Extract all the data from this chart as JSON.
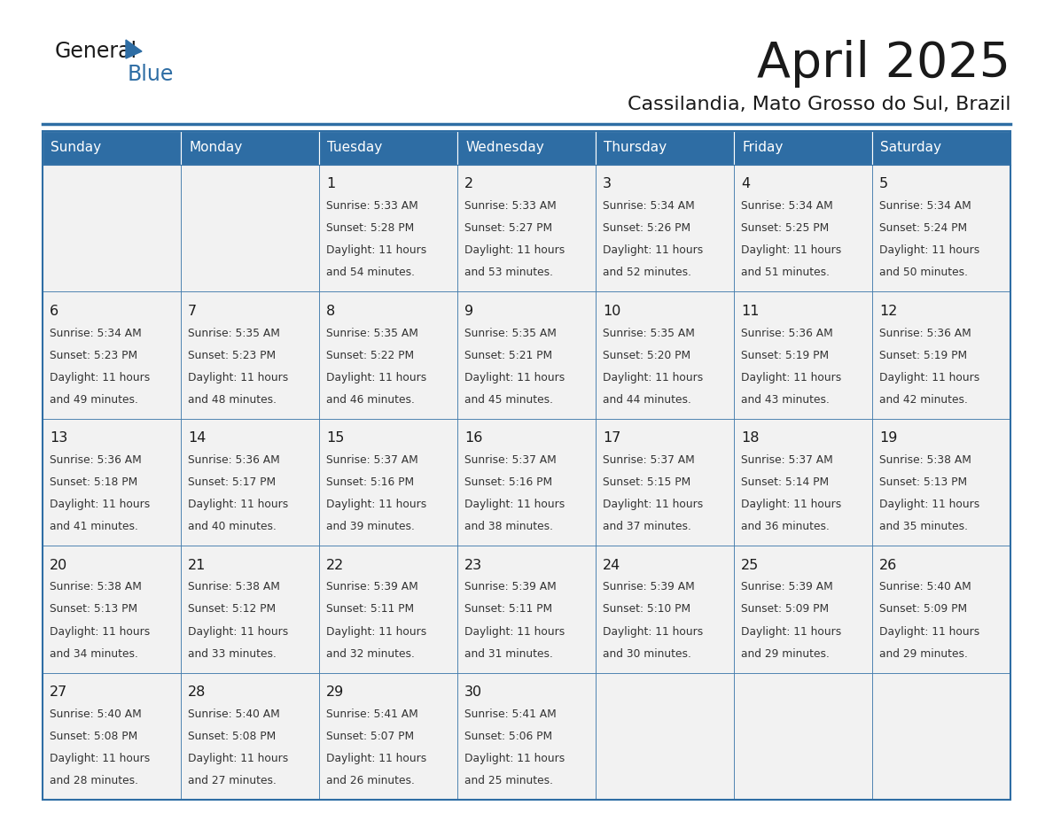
{
  "title": "April 2025",
  "subtitle": "Cassilandia, Mato Grosso do Sul, Brazil",
  "header_bg_color": "#2E6DA4",
  "header_text_color": "#FFFFFF",
  "cell_bg_color_odd": "#F0F0F0",
  "cell_bg_color_even": "#F8F8F8",
  "day_number_color": "#1A1A1A",
  "cell_text_color": "#333333",
  "border_color": "#2E6DA4",
  "days_of_week": [
    "Sunday",
    "Monday",
    "Tuesday",
    "Wednesday",
    "Thursday",
    "Friday",
    "Saturday"
  ],
  "calendar_data": [
    [
      {
        "day": "",
        "sunrise": "",
        "sunset": "",
        "daylight": ""
      },
      {
        "day": "",
        "sunrise": "",
        "sunset": "",
        "daylight": ""
      },
      {
        "day": "1",
        "sunrise": "5:33 AM",
        "sunset": "5:28 PM",
        "daylight": "11 hours and 54 minutes."
      },
      {
        "day": "2",
        "sunrise": "5:33 AM",
        "sunset": "5:27 PM",
        "daylight": "11 hours and 53 minutes."
      },
      {
        "day": "3",
        "sunrise": "5:34 AM",
        "sunset": "5:26 PM",
        "daylight": "11 hours and 52 minutes."
      },
      {
        "day": "4",
        "sunrise": "5:34 AM",
        "sunset": "5:25 PM",
        "daylight": "11 hours and 51 minutes."
      },
      {
        "day": "5",
        "sunrise": "5:34 AM",
        "sunset": "5:24 PM",
        "daylight": "11 hours and 50 minutes."
      }
    ],
    [
      {
        "day": "6",
        "sunrise": "5:34 AM",
        "sunset": "5:23 PM",
        "daylight": "11 hours and 49 minutes."
      },
      {
        "day": "7",
        "sunrise": "5:35 AM",
        "sunset": "5:23 PM",
        "daylight": "11 hours and 48 minutes."
      },
      {
        "day": "8",
        "sunrise": "5:35 AM",
        "sunset": "5:22 PM",
        "daylight": "11 hours and 46 minutes."
      },
      {
        "day": "9",
        "sunrise": "5:35 AM",
        "sunset": "5:21 PM",
        "daylight": "11 hours and 45 minutes."
      },
      {
        "day": "10",
        "sunrise": "5:35 AM",
        "sunset": "5:20 PM",
        "daylight": "11 hours and 44 minutes."
      },
      {
        "day": "11",
        "sunrise": "5:36 AM",
        "sunset": "5:19 PM",
        "daylight": "11 hours and 43 minutes."
      },
      {
        "day": "12",
        "sunrise": "5:36 AM",
        "sunset": "5:19 PM",
        "daylight": "11 hours and 42 minutes."
      }
    ],
    [
      {
        "day": "13",
        "sunrise": "5:36 AM",
        "sunset": "5:18 PM",
        "daylight": "11 hours and 41 minutes."
      },
      {
        "day": "14",
        "sunrise": "5:36 AM",
        "sunset": "5:17 PM",
        "daylight": "11 hours and 40 minutes."
      },
      {
        "day": "15",
        "sunrise": "5:37 AM",
        "sunset": "5:16 PM",
        "daylight": "11 hours and 39 minutes."
      },
      {
        "day": "16",
        "sunrise": "5:37 AM",
        "sunset": "5:16 PM",
        "daylight": "11 hours and 38 minutes."
      },
      {
        "day": "17",
        "sunrise": "5:37 AM",
        "sunset": "5:15 PM",
        "daylight": "11 hours and 37 minutes."
      },
      {
        "day": "18",
        "sunrise": "5:37 AM",
        "sunset": "5:14 PM",
        "daylight": "11 hours and 36 minutes."
      },
      {
        "day": "19",
        "sunrise": "5:38 AM",
        "sunset": "5:13 PM",
        "daylight": "11 hours and 35 minutes."
      }
    ],
    [
      {
        "day": "20",
        "sunrise": "5:38 AM",
        "sunset": "5:13 PM",
        "daylight": "11 hours and 34 minutes."
      },
      {
        "day": "21",
        "sunrise": "5:38 AM",
        "sunset": "5:12 PM",
        "daylight": "11 hours and 33 minutes."
      },
      {
        "day": "22",
        "sunrise": "5:39 AM",
        "sunset": "5:11 PM",
        "daylight": "11 hours and 32 minutes."
      },
      {
        "day": "23",
        "sunrise": "5:39 AM",
        "sunset": "5:11 PM",
        "daylight": "11 hours and 31 minutes."
      },
      {
        "day": "24",
        "sunrise": "5:39 AM",
        "sunset": "5:10 PM",
        "daylight": "11 hours and 30 minutes."
      },
      {
        "day": "25",
        "sunrise": "5:39 AM",
        "sunset": "5:09 PM",
        "daylight": "11 hours and 29 minutes."
      },
      {
        "day": "26",
        "sunrise": "5:40 AM",
        "sunset": "5:09 PM",
        "daylight": "11 hours and 29 minutes."
      }
    ],
    [
      {
        "day": "27",
        "sunrise": "5:40 AM",
        "sunset": "5:08 PM",
        "daylight": "11 hours and 28 minutes."
      },
      {
        "day": "28",
        "sunrise": "5:40 AM",
        "sunset": "5:08 PM",
        "daylight": "11 hours and 27 minutes."
      },
      {
        "day": "29",
        "sunrise": "5:41 AM",
        "sunset": "5:07 PM",
        "daylight": "11 hours and 26 minutes."
      },
      {
        "day": "30",
        "sunrise": "5:41 AM",
        "sunset": "5:06 PM",
        "daylight": "11 hours and 25 minutes."
      },
      {
        "day": "",
        "sunrise": "",
        "sunset": "",
        "daylight": ""
      },
      {
        "day": "",
        "sunrise": "",
        "sunset": "",
        "daylight": ""
      },
      {
        "day": "",
        "sunrise": "",
        "sunset": "",
        "daylight": ""
      }
    ]
  ]
}
